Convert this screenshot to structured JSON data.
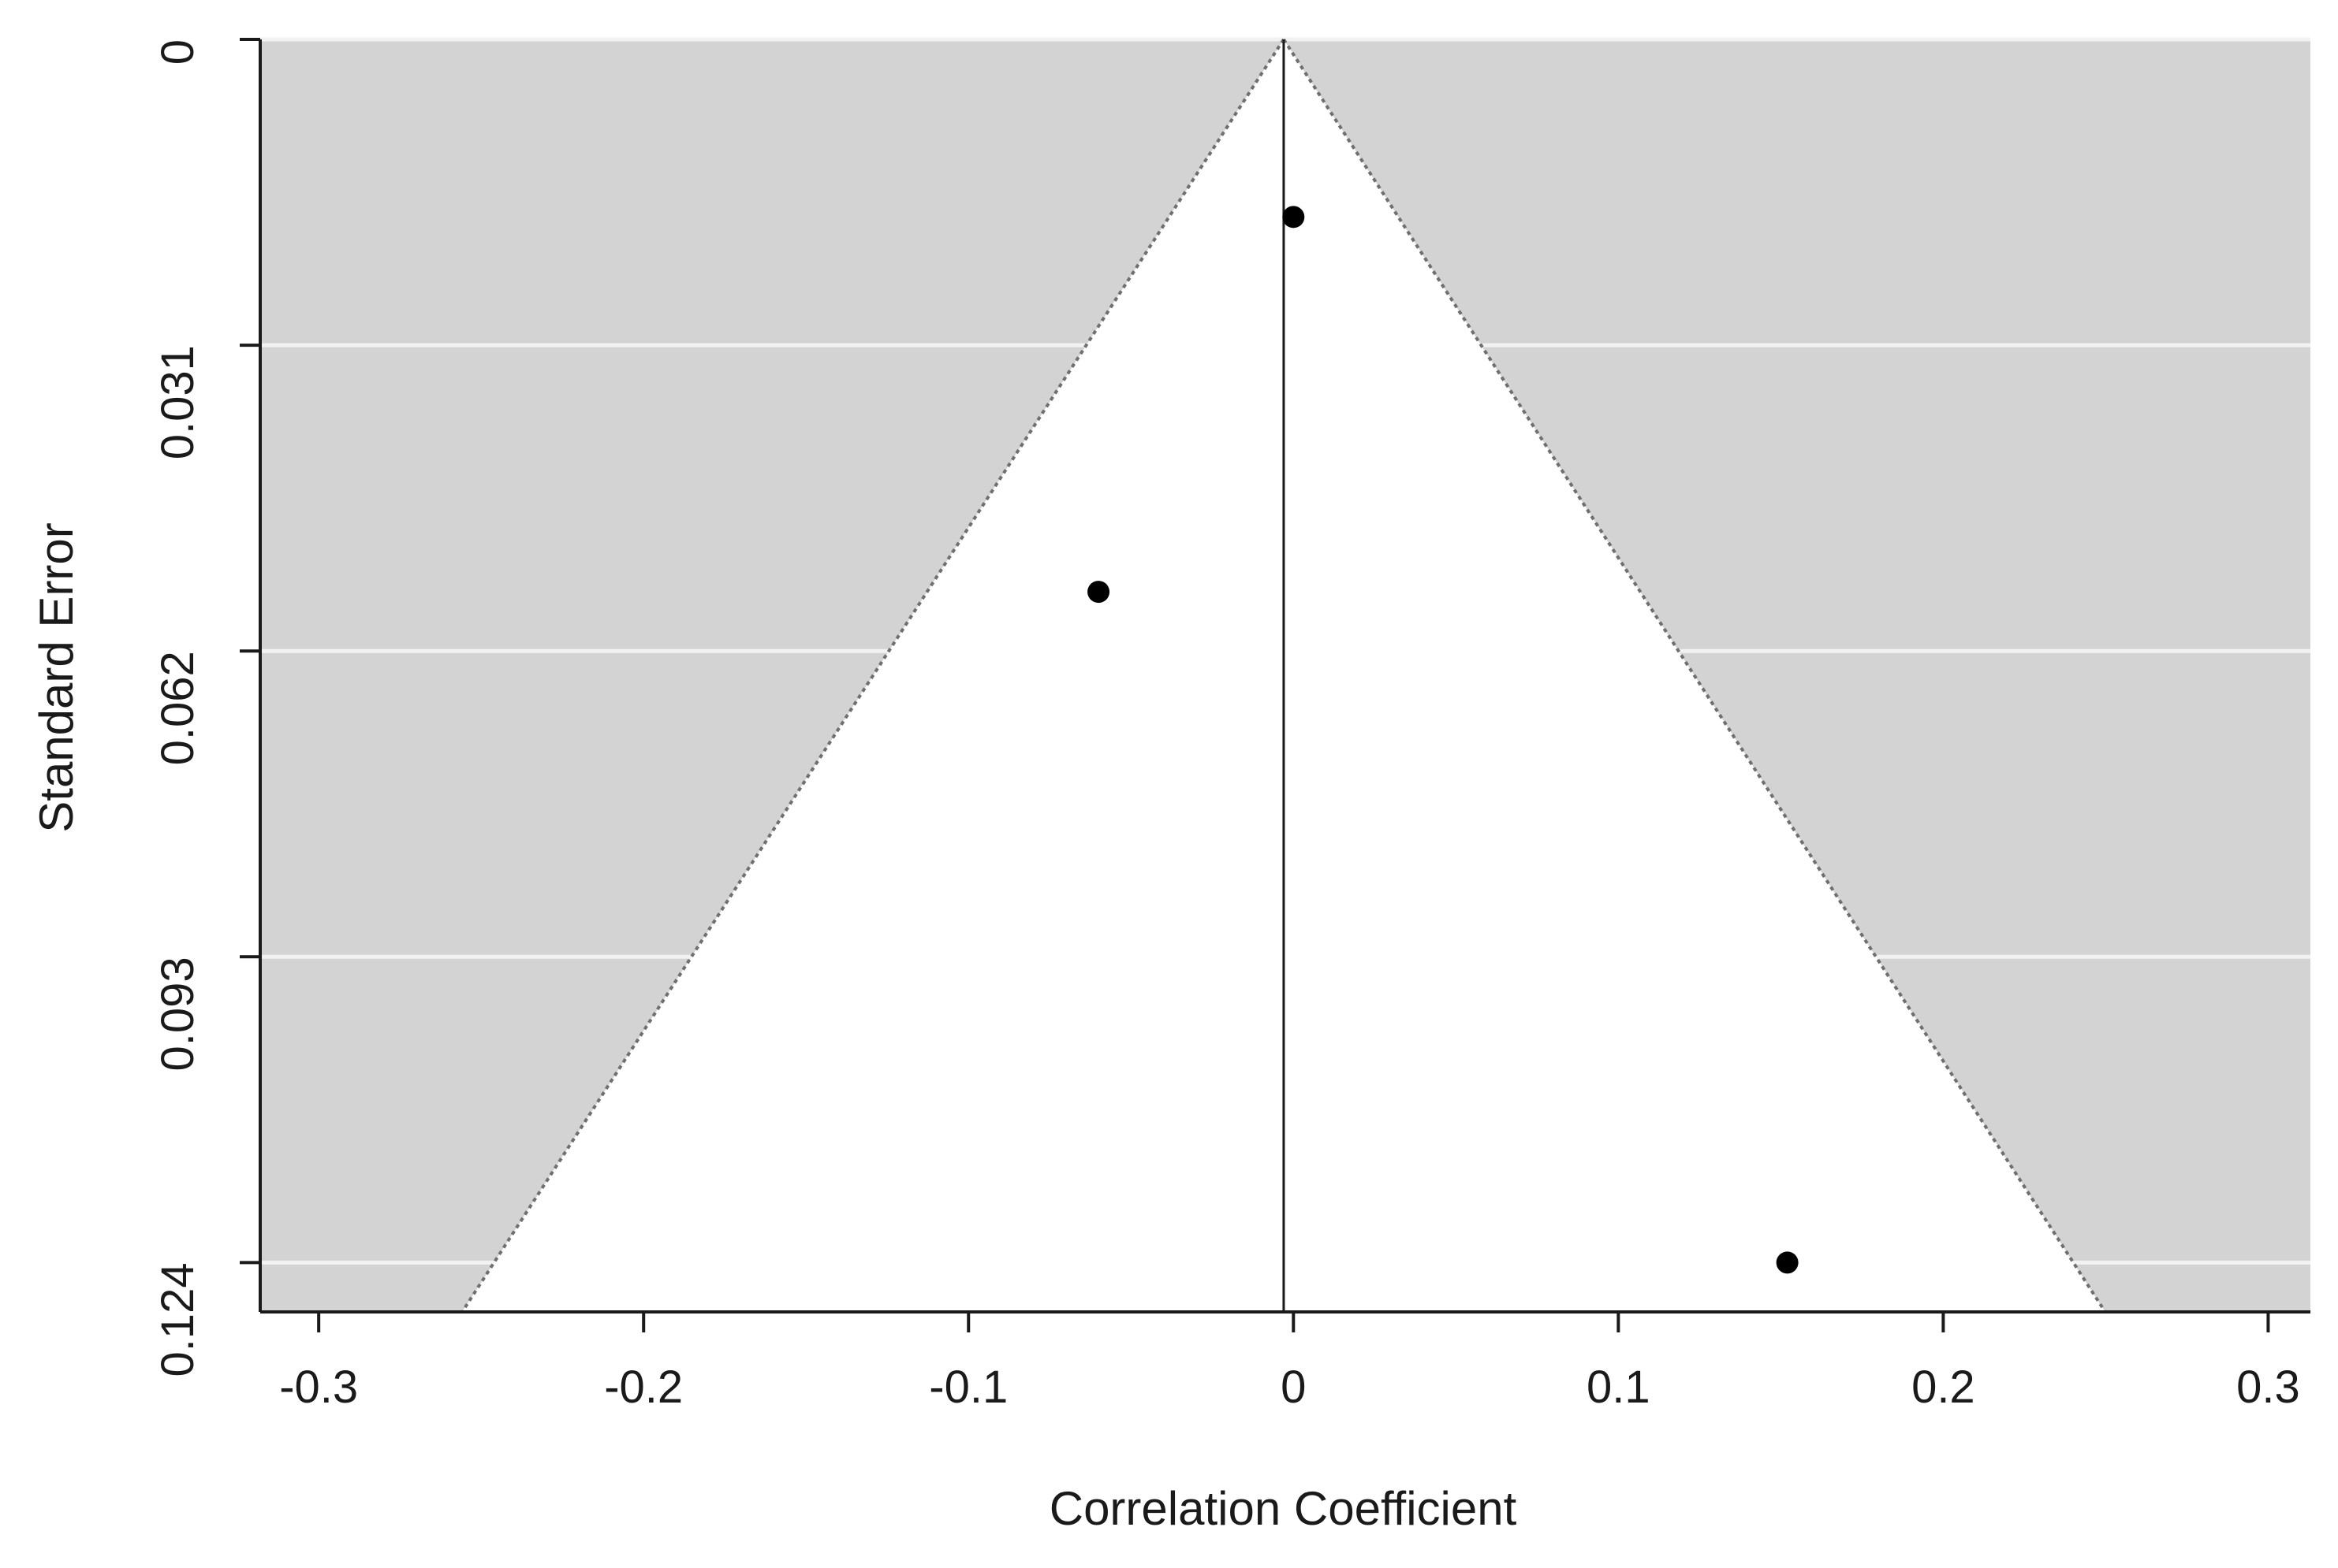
{
  "chart_data": {
    "type": "scatter",
    "subtype": "funnel",
    "title": "",
    "xlabel": "Correlation Coefficient",
    "ylabel": "Standard Error",
    "xlim": [
      -0.318,
      0.313
    ],
    "ylim": [
      0,
      0.129
    ],
    "y_reversed": true,
    "x_ticks": [
      -0.3,
      -0.2,
      -0.1,
      0,
      0.1,
      0.2,
      0.3
    ],
    "x_tick_labels": [
      "-0.3",
      "-0.2",
      "-0.1",
      "0",
      "0.1",
      "0.2",
      "0.3"
    ],
    "y_ticks": [
      0,
      0.031,
      0.062,
      0.093,
      0.124
    ],
    "y_tick_labels": [
      "0",
      "0.031",
      "0.062",
      "0.093",
      "0.124"
    ],
    "grid": "horizontal",
    "background_color": "#d3d3d3",
    "funnel_fill_color": "#ffffff",
    "gridline_color": "#f2f2f2",
    "point_color": "#000000",
    "center_line_x": -0.003,
    "funnel_multiplier": 1.96,
    "points": [
      {
        "x": 0.0,
        "y": 0.018
      },
      {
        "x": -0.06,
        "y": 0.056
      },
      {
        "x": 0.152,
        "y": 0.124
      }
    ]
  }
}
